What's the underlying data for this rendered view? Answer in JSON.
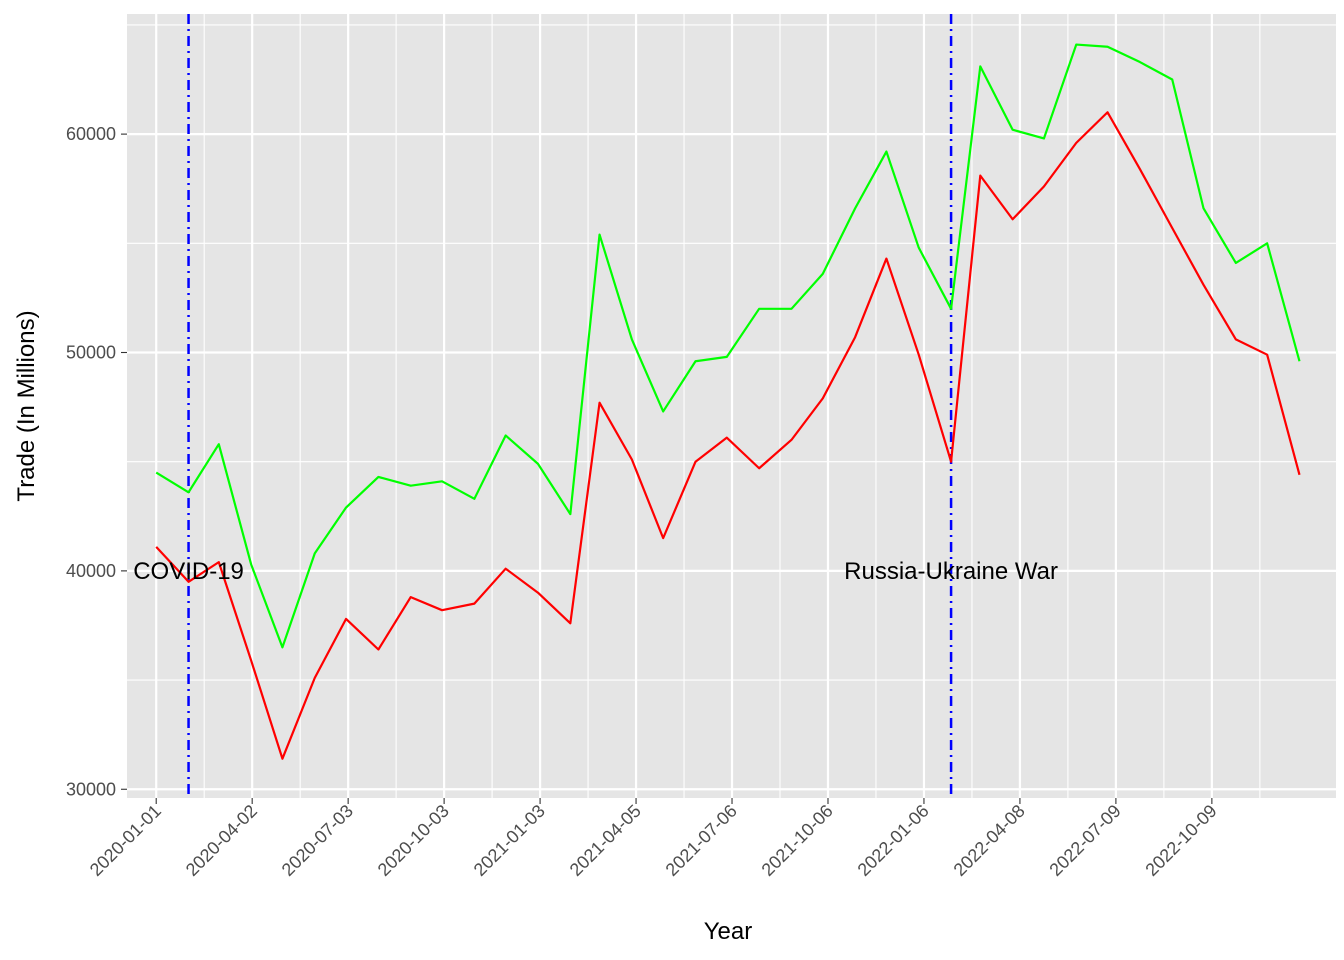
{
  "chart_data": {
    "type": "line",
    "title": "",
    "xlabel": "Year",
    "ylabel": "Trade (In Millions)",
    "x_tick_labels": [
      "2020-01-01",
      "2020-04-02",
      "2020-07-03",
      "2020-10-03",
      "2021-01-03",
      "2021-04-05",
      "2021-07-06",
      "2021-10-06",
      "2022-01-06",
      "2022-04-08",
      "2022-07-09",
      "2022-10-09"
    ],
    "y_ticks": [
      30000,
      40000,
      50000,
      60000
    ],
    "y_tick_labels": [
      "30000",
      "40000",
      "50000",
      "60000"
    ],
    "ylim": [
      29600,
      65500
    ],
    "xlim": [
      "2019-12-04",
      "2023-02-05"
    ],
    "grid": true,
    "x": [
      "2020-01-01",
      "2020-02-01",
      "2020-03-01",
      "2020-04-01",
      "2020-05-01",
      "2020-06-01",
      "2020-07-01",
      "2020-08-01",
      "2020-09-01",
      "2020-10-01",
      "2020-11-01",
      "2020-12-01",
      "2021-01-01",
      "2021-02-01",
      "2021-03-01",
      "2021-04-01",
      "2021-05-01",
      "2021-06-01",
      "2021-07-01",
      "2021-08-01",
      "2021-09-01",
      "2021-10-01",
      "2021-11-01",
      "2021-12-01",
      "2022-01-01",
      "2022-02-01",
      "2022-03-01",
      "2022-04-01",
      "2022-05-01",
      "2022-06-01",
      "2022-07-01",
      "2022-08-01",
      "2022-09-01",
      "2022-10-01",
      "2022-11-01",
      "2022-12-01",
      "2023-01-01"
    ],
    "series": [
      {
        "color": "#00ff00",
        "values": [
          44500,
          43600,
          45800,
          40300,
          36500,
          40800,
          42900,
          44300,
          43900,
          44100,
          43300,
          46200,
          44900,
          42600,
          55400,
          50600,
          47300,
          49600,
          49800,
          52000,
          52000,
          53600,
          56600,
          59200,
          54800,
          52000,
          63100,
          60200,
          59800,
          64100,
          64000,
          63300,
          62500,
          56600,
          54100,
          55000,
          49600
        ]
      },
      {
        "color": "#ff0000",
        "values": [
          41100,
          39500,
          40400,
          35900,
          31400,
          35100,
          37800,
          36400,
          38800,
          38200,
          38500,
          40100,
          39000,
          37600,
          47700,
          45100,
          41500,
          45000,
          46100,
          44700,
          46000,
          47900,
          50700,
          54300,
          49900,
          45000,
          58100,
          56100,
          57600,
          59600,
          61000,
          58400,
          55700,
          53100,
          50600,
          49900,
          44400
        ]
      }
    ],
    "annotations": [
      {
        "label": "COVID-19",
        "x": "2020-02-01",
        "y": 40000
      },
      {
        "label": "Russia-Ukraine War",
        "x": "2022-02-01",
        "y": 40000
      }
    ],
    "vlines": [
      {
        "x": "2020-02-01",
        "color": "#0000ff",
        "style": "dashdot"
      },
      {
        "x": "2022-02-01",
        "color": "#0000ff",
        "style": "dashdot"
      }
    ],
    "panel_color": "#e5e5e5",
    "grid_color": "#ffffff"
  }
}
